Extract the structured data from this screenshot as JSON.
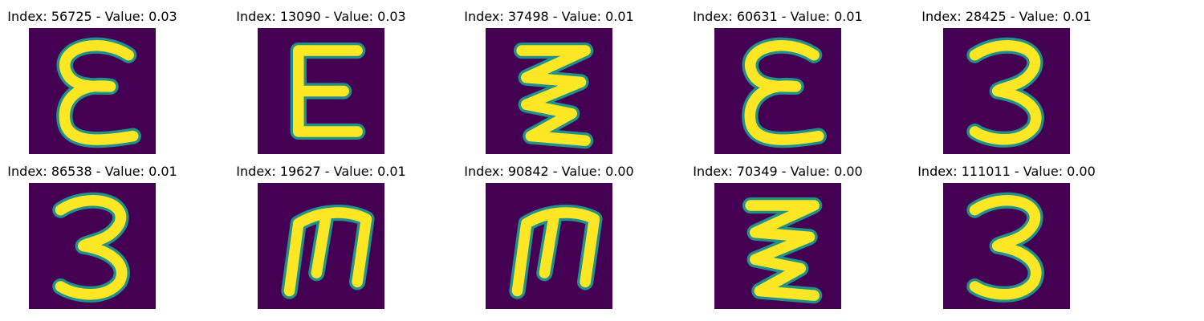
{
  "chart_data": {
    "type": "image-grid",
    "rows": 2,
    "cols": 5,
    "colors": {
      "background": "#440154",
      "mid": "#21918c",
      "foreground": "#fde725"
    },
    "items": [
      {
        "title": "Index: 56725 - Value: 0.03",
        "index": 56725,
        "value": 0.03,
        "glyph": "ε"
      },
      {
        "title": "Index: 13090 - Value: 0.03",
        "index": 13090,
        "value": 0.03,
        "glyph": "E"
      },
      {
        "title": "Index: 37498 - Value: 0.01",
        "index": 37498,
        "value": 0.01,
        "glyph": "ξ"
      },
      {
        "title": "Index: 60631 - Value: 0.01",
        "index": 60631,
        "value": 0.01,
        "glyph": "ε"
      },
      {
        "title": "Index: 28425 - Value: 0.01",
        "index": 28425,
        "value": 0.01,
        "glyph": "3"
      },
      {
        "title": "Index: 86538 - Value: 0.01",
        "index": 86538,
        "value": 0.01,
        "glyph": "3"
      },
      {
        "title": "Index: 19627 - Value: 0.01",
        "index": 19627,
        "value": 0.01,
        "glyph": "ш"
      },
      {
        "title": "Index: 90842 - Value: 0.00",
        "index": 90842,
        "value": 0.0,
        "glyph": "ш"
      },
      {
        "title": "Index: 70349 - Value: 0.00",
        "index": 70349,
        "value": 0.0,
        "glyph": "ξ"
      },
      {
        "title": "Index: 111011 - Value: 0.00",
        "index": 111011,
        "value": 0.0,
        "glyph": "3"
      }
    ]
  }
}
